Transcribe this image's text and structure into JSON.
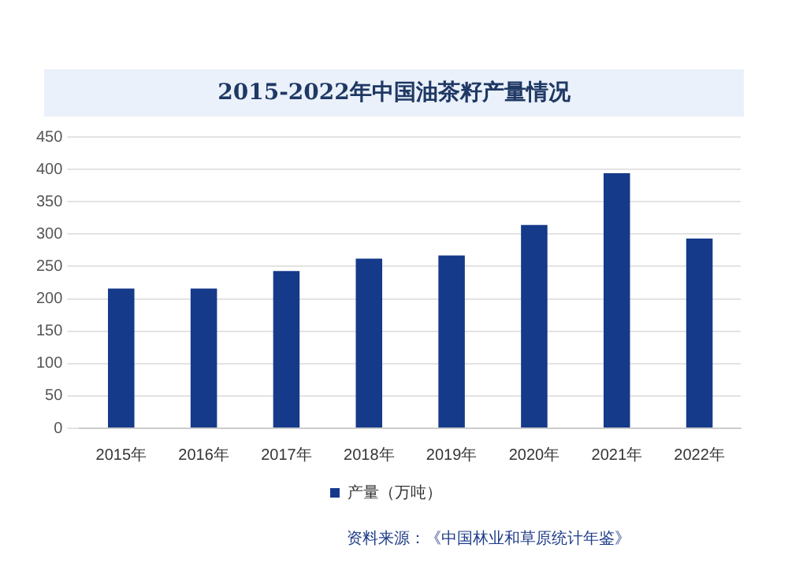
{
  "chart_data": {
    "type": "bar",
    "title": "2015-2022年中国油茶籽产量情况",
    "categories": [
      "2015年",
      "2016年",
      "2017年",
      "2018年",
      "2019年",
      "2020年",
      "2021年",
      "2022年"
    ],
    "series": [
      {
        "name": "产量（万吨）",
        "color": "#163a8a",
        "values": [
          216,
          216,
          243,
          262,
          267,
          314,
          394,
          293
        ]
      }
    ],
    "ylim": [
      0,
      450
    ],
    "yticks": [
      0,
      50,
      100,
      150,
      200,
      250,
      300,
      350,
      400,
      450
    ],
    "grid": "y",
    "legend": "bottom",
    "annotations": [
      "资料来源：《中国林业和草原统计年鉴》"
    ]
  }
}
